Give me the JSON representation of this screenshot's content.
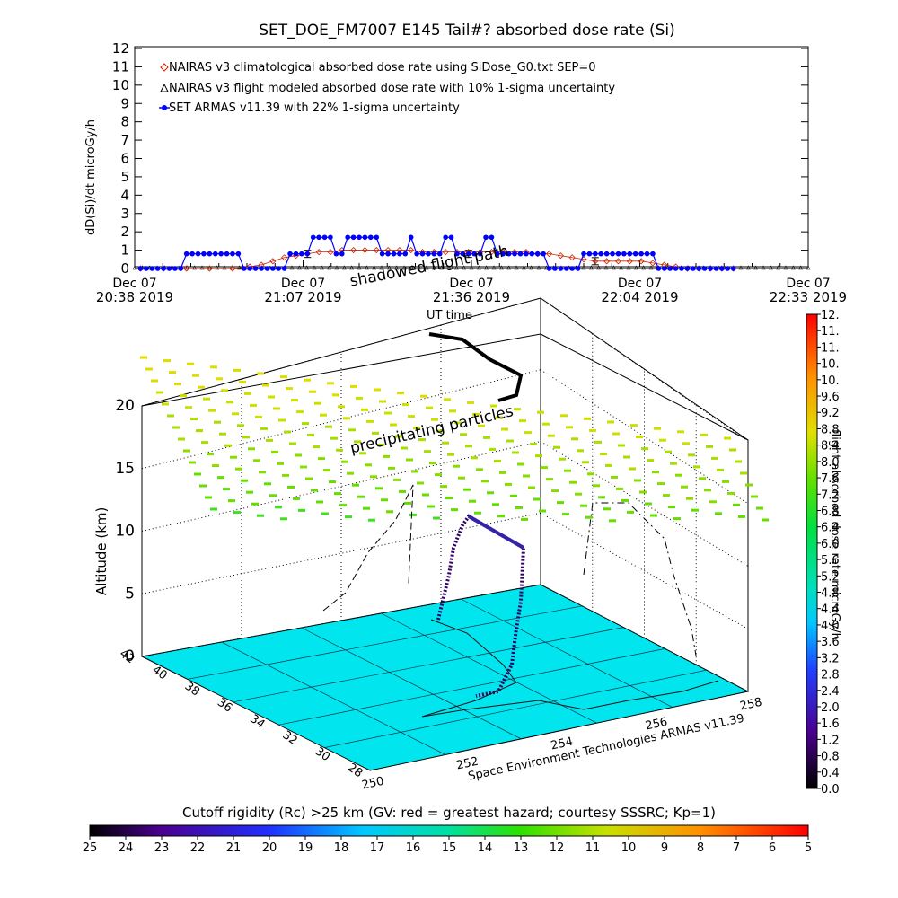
{
  "title": "SET_DOE_FM7007  E145 Tail#? absorbed dose rate (Si)",
  "chart_data": [
    {
      "type": "line",
      "ylabel": "dD(Si)/dt microGy/h",
      "xlabel": "UT time",
      "ylim": [
        0,
        12
      ],
      "yticks": [
        "0",
        "1",
        "2",
        "3",
        "4",
        "5",
        "6",
        "7",
        "8",
        "9",
        "10",
        "11",
        "12"
      ],
      "xticks": [
        {
          "date": "Dec 07",
          "time": "20:38 2019"
        },
        {
          "date": "Dec 07",
          "time": "21:07 2019"
        },
        {
          "date": "Dec 07",
          "time": "21:36 2019"
        },
        {
          "date": "Dec 07",
          "time": "22:04 2019"
        },
        {
          "date": "Dec 07",
          "time": "22:33 2019"
        }
      ],
      "x_minutes": [
        0,
        117
      ],
      "legend": [
        "NAIRAS v3 climatological absorbed dose rate using SiDose_G0.txt SEP=0",
        "NAIRAS v3 flight modeled absorbed dose rate with 10% 1-sigma uncertainty",
        "SET ARMAS v11.39 with 22% 1-sigma uncertainty"
      ],
      "series": [
        {
          "name": "SET ARMAS v11.39 with 22% 1-sigma uncertainty",
          "color": "#0000ff",
          "x": [
            1,
            2,
            3,
            4,
            5,
            6,
            7,
            8,
            9,
            10,
            11,
            12,
            13,
            14,
            15,
            16,
            17,
            18,
            19,
            20,
            21,
            22,
            23,
            24,
            25,
            26,
            27,
            28,
            29,
            30,
            31,
            32,
            33,
            34,
            35,
            36,
            37,
            38,
            39,
            40,
            41,
            42,
            43,
            44,
            45,
            46,
            47,
            48,
            49,
            50,
            51,
            52,
            53,
            54,
            55,
            56,
            57,
            58,
            59,
            60,
            61,
            62,
            63,
            64,
            65,
            66,
            67,
            68,
            69,
            70,
            71,
            72,
            73,
            74,
            75,
            76,
            77,
            78,
            79,
            80,
            81,
            82,
            83,
            84,
            85,
            86,
            87,
            88,
            89,
            90,
            91,
            92,
            93,
            94,
            95,
            96,
            97,
            98,
            99,
            100,
            101,
            102,
            103,
            104
          ],
          "y": [
            0,
            0,
            0,
            0,
            0,
            0,
            0,
            0,
            0.8,
            0.8,
            0.8,
            0.8,
            0.8,
            0.8,
            0.8,
            0.8,
            0.8,
            0.8,
            0,
            0,
            0,
            0,
            0,
            0,
            0,
            0,
            0.8,
            0.8,
            0.8,
            0.8,
            1.7,
            1.7,
            1.7,
            1.7,
            0.8,
            0.8,
            1.7,
            1.7,
            1.7,
            1.7,
            1.7,
            1.7,
            0.8,
            0.8,
            0.8,
            0.8,
            0.8,
            1.7,
            0.8,
            0.8,
            0.8,
            0.8,
            0.8,
            1.7,
            1.7,
            0.8,
            0.8,
            0.8,
            0.8,
            0.8,
            1.7,
            1.7,
            0.8,
            0.8,
            0.8,
            0.8,
            0.8,
            0.8,
            0.8,
            0.8,
            0.8,
            0,
            0,
            0,
            0,
            0,
            0,
            0.8,
            0.8,
            0.8,
            0.8,
            0.8,
            0.8,
            0.8,
            0.8,
            0.8,
            0.8,
            0.8,
            0.8,
            0.8,
            0,
            0,
            0,
            0,
            0,
            0,
            0,
            0,
            0,
            0,
            0,
            0,
            0,
            0
          ]
        },
        {
          "name": "NAIRAS v3 climatological absorbed dose rate using SiDose_G0.txt SEP=0",
          "color": "#cc2200",
          "x": [
            1,
            5,
            9,
            13,
            17,
            20,
            22,
            24,
            26,
            28,
            30,
            32,
            34,
            36,
            38,
            40,
            42,
            44,
            46,
            48,
            50,
            52,
            54,
            56,
            58,
            60,
            62,
            64,
            66,
            68,
            70,
            72,
            74,
            76,
            78,
            80,
            82,
            84,
            86,
            88,
            90,
            92,
            94,
            96,
            98,
            100,
            102,
            104
          ],
          "y": [
            0,
            0,
            0,
            0,
            0,
            0.1,
            0.2,
            0.4,
            0.6,
            0.7,
            0.8,
            0.9,
            0.9,
            1.0,
            1.0,
            1.0,
            1.0,
            1.0,
            1.0,
            1.0,
            0.9,
            0.9,
            0.9,
            0.9,
            0.9,
            0.9,
            0.9,
            0.9,
            0.9,
            0.9,
            0.8,
            0.8,
            0.7,
            0.6,
            0.5,
            0.4,
            0.4,
            0.4,
            0.4,
            0.4,
            0.3,
            0.2,
            0.1,
            0,
            0,
            0,
            0,
            0
          ]
        },
        {
          "name": "NAIRAS v3 flight modeled absorbed dose rate with 10% 1-sigma uncertainty",
          "color": "#000000",
          "x": [
            0,
            4,
            8,
            12,
            16,
            20,
            24,
            28,
            32,
            36,
            40,
            44,
            48,
            52,
            56,
            60,
            64,
            68,
            72,
            76,
            80,
            84,
            88,
            92,
            96,
            100,
            104,
            108,
            112,
            116
          ],
          "y": [
            0,
            0,
            0,
            0,
            0,
            0,
            0,
            0,
            0,
            0,
            0,
            0,
            0,
            0,
            0,
            0,
            0,
            0,
            0,
            0,
            0,
            0,
            0,
            0,
            0,
            0,
            0,
            0,
            0,
            0
          ],
          "errorbars": [
            {
              "x": 30,
              "y": 0.8
            },
            {
              "x": 58,
              "y": 0.8
            },
            {
              "x": 80,
              "y": 0.4
            }
          ]
        }
      ]
    },
    {
      "type": "scatter",
      "ylabel": "Altitude (km)",
      "zticks": [
        "0",
        "5",
        "10",
        "15",
        "20"
      ],
      "lat_ticks": [
        "42",
        "40",
        "38",
        "36",
        "34",
        "32",
        "30",
        "28"
      ],
      "lon_ticks": [
        "250",
        "252",
        "254",
        "256",
        "258"
      ],
      "annotations": [
        "shadowed flight path",
        "precipitating particles"
      ],
      "credit": "Space Environment Technologies ARMAS v11.39",
      "colorbar_title": "flight absorbed dose rate microGy/h",
      "colorbar_ticks": [
        "0.0",
        "0.4",
        "0.8",
        "1.2",
        "1.6",
        "2.0",
        "2.4",
        "2.8",
        "3.2",
        "3.6",
        "4.0",
        "4.4",
        "4.8",
        "5.2",
        "5.6",
        "6.0",
        "6.4",
        "6.8",
        "7.2",
        "7.6",
        "8.0",
        "8.4",
        "8.8",
        "9.2",
        "9.6",
        "10.",
        "10.",
        "11.",
        "11.",
        "12."
      ],
      "rc_caption": "Cutoff rigidity (Rc) >25 km (GV: red = greatest hazard; courtesy SSSRC; Kp=1)",
      "rc_ticks": [
        "25",
        "24",
        "23",
        "22",
        "21",
        "20",
        "19",
        "18",
        "17",
        "16",
        "15",
        "14",
        "13",
        "12",
        "11",
        "10",
        "9",
        "8",
        "7",
        "6",
        "5"
      ],
      "floor_color": "#00e5ee"
    }
  ]
}
